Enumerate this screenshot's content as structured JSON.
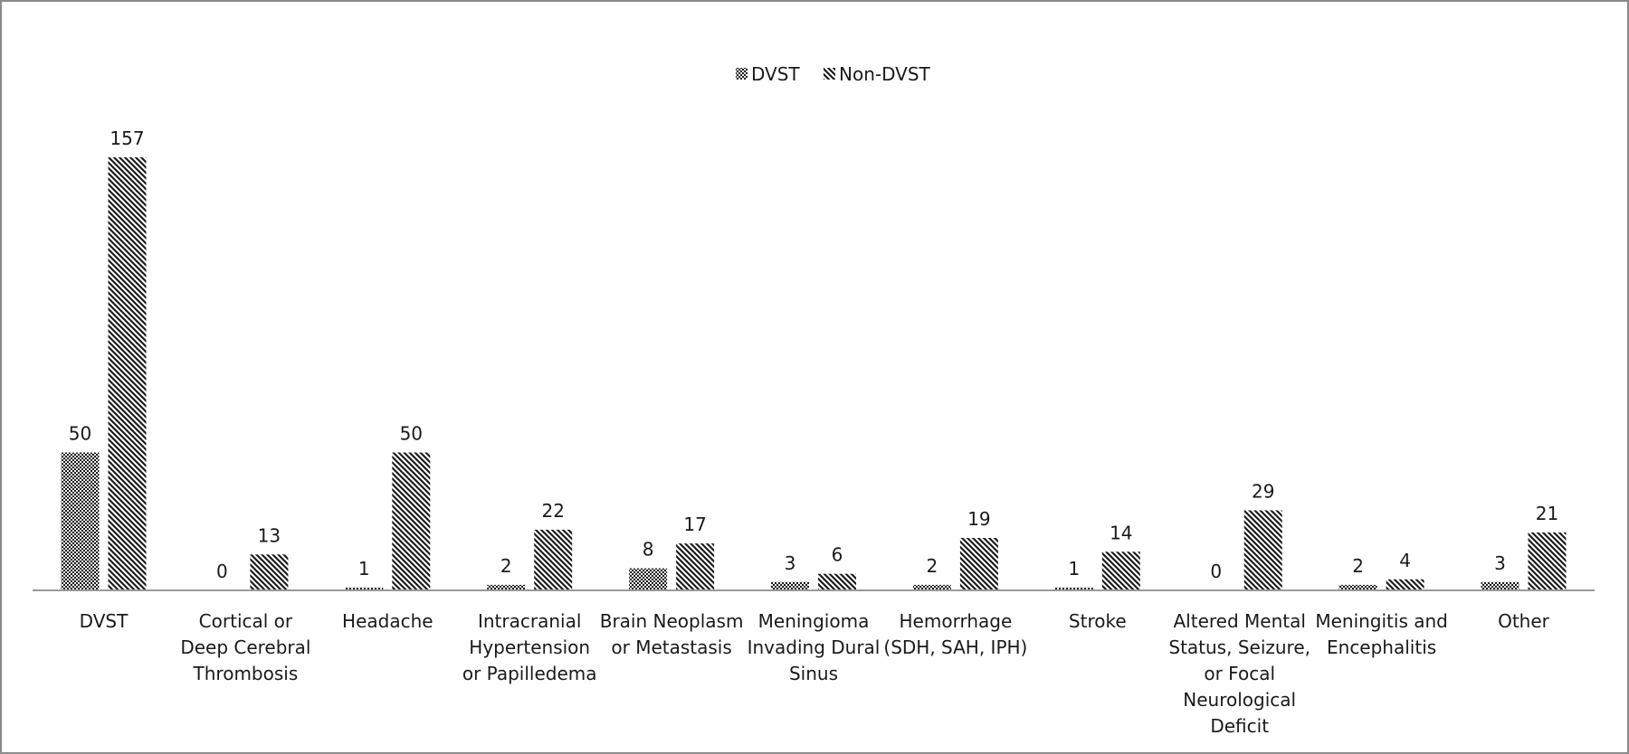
{
  "chart_data": {
    "type": "bar",
    "title": "",
    "xlabel": "",
    "ylabel": "",
    "ylim": [
      0,
      157
    ],
    "grid": false,
    "legend_position": "top-center",
    "categories": [
      [
        "DVST"
      ],
      [
        "Cortical or",
        "Deep Cerebral",
        "Thrombosis"
      ],
      [
        "Headache"
      ],
      [
        "Intracranial",
        "Hypertension",
        "or Papilledema"
      ],
      [
        "Brain Neoplasm",
        "or Metastasis"
      ],
      [
        "Meningioma",
        "Invading Dural",
        "Sinus"
      ],
      [
        "Hemorrhage",
        "(SDH, SAH, IPH)"
      ],
      [
        "Stroke"
      ],
      [
        "Altered Mental",
        "Status, Seizure,",
        "or Focal",
        "Neurological",
        "Deficit"
      ],
      [
        "Meningitis and",
        "Encephalitis"
      ],
      [
        "Other"
      ]
    ],
    "series": [
      {
        "name": "DVST",
        "pattern": "checker",
        "color": "#222222",
        "values": [
          50,
          0,
          1,
          2,
          8,
          3,
          2,
          1,
          0,
          2,
          3
        ]
      },
      {
        "name": "Non-DVST",
        "pattern": "diagonal",
        "color": "#222222",
        "values": [
          157,
          13,
          50,
          22,
          17,
          6,
          19,
          14,
          29,
          4,
          21
        ]
      }
    ]
  }
}
